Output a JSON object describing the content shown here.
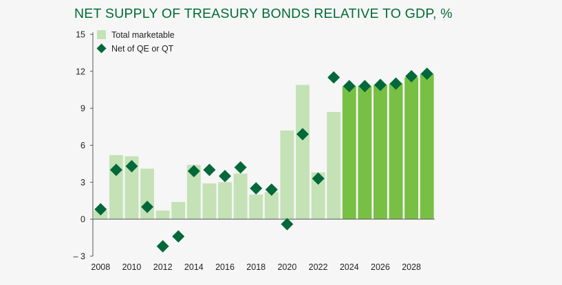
{
  "chart_data": {
    "type": "bar",
    "title": "NET SUPPLY OF TREASURY BONDS RELATIVE TO GDP, %",
    "xlabel": "",
    "ylabel": "",
    "ylim": [
      -3,
      15
    ],
    "yticks": [
      15,
      12,
      9,
      6,
      3,
      0,
      -3
    ],
    "ytick_labels": [
      "15",
      "12",
      "9",
      "6",
      "3",
      "0",
      "– 3"
    ],
    "x": [
      2008,
      2009,
      2010,
      2011,
      2012,
      2013,
      2014,
      2015,
      2016,
      2017,
      2018,
      2019,
      2020,
      2021,
      2022,
      2023,
      2024,
      2025,
      2026,
      2027,
      2028,
      2029
    ],
    "xtick_labels": [
      "2008",
      "2010",
      "2012",
      "2014",
      "2016",
      "2018",
      "2020",
      "2022",
      "2024",
      "2026",
      "2028"
    ],
    "forecast_start": 2024,
    "series": [
      {
        "name": "Total marketable",
        "kind": "bar",
        "values": [
          0.7,
          5.2,
          5.1,
          4.1,
          0.7,
          1.4,
          4.4,
          2.9,
          3.0,
          3.7,
          2.0,
          2.2,
          7.2,
          10.9,
          3.8,
          8.7,
          10.8,
          10.8,
          10.9,
          11.0,
          11.5,
          11.8
        ]
      },
      {
        "name": "Net of QE or QT",
        "kind": "marker",
        "values": [
          0.8,
          4.0,
          4.3,
          1.0,
          -2.2,
          -1.4,
          3.9,
          4.0,
          3.5,
          4.2,
          2.5,
          2.4,
          -0.4,
          6.9,
          3.3,
          11.5,
          10.8,
          10.8,
          10.9,
          11.0,
          11.6,
          11.8
        ]
      }
    ],
    "colors": {
      "bar_historical": "#c4e2b5",
      "bar_forecast": "#77c043",
      "marker": "#00683a",
      "axis": "#555555",
      "title": "#006b35"
    },
    "legend_position": "top-left"
  }
}
